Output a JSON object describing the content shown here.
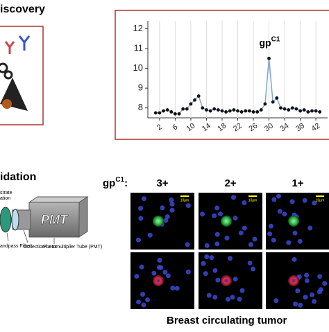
{
  "header": {
    "discovery": "iscovery",
    "validation": "idation"
  },
  "chart_data": {
    "type": "line",
    "annotation": {
      "base": "gp",
      "sup": "C1"
    },
    "x": [
      1,
      2,
      3,
      4,
      5,
      6,
      7,
      8,
      9,
      10,
      11,
      12,
      13,
      14,
      15,
      16,
      17,
      18,
      19,
      20,
      21,
      22,
      23,
      24,
      25,
      26,
      27,
      28,
      29,
      30,
      31,
      32,
      33,
      34,
      35,
      36,
      37,
      38,
      39,
      40,
      41,
      42,
      43
    ],
    "series": [
      {
        "color": "#7fa3d9",
        "marker_color": "#111111",
        "values": [
          7.75,
          7.75,
          7.85,
          7.9,
          7.8,
          7.7,
          7.7,
          7.95,
          7.95,
          8.2,
          8.4,
          8.6,
          8.0,
          7.9,
          7.85,
          7.95,
          7.9,
          7.85,
          7.8,
          7.85,
          7.9,
          7.85,
          7.8,
          7.85,
          7.85,
          7.8,
          7.8,
          7.9,
          8.2,
          10.5,
          8.3,
          8.5,
          8.0,
          7.95,
          7.9,
          8.0,
          7.95,
          7.85,
          7.9,
          7.8,
          7.85,
          7.85,
          7.8
        ]
      }
    ],
    "xlim": [
      -1,
      45
    ],
    "ylim": [
      7.5,
      12.4
    ],
    "xticks": [
      2,
      6,
      10,
      14,
      18,
      22,
      26,
      30,
      34,
      38,
      42
    ],
    "yticks": [
      8,
      9,
      10,
      11,
      12
    ],
    "grid": "x"
  },
  "panel": {
    "prefix": {
      "base": "gp",
      "sup": "C1",
      "colon": ":"
    },
    "columns": [
      "3+",
      "2+",
      "1+"
    ],
    "scale": "10μm",
    "caption": "Breast circulating tumor"
  },
  "diagram": {
    "pmt": "PMT",
    "substrate": "strate",
    "illumination": "ation",
    "filter": "andpass Filter",
    "lens": "Collection Lens",
    "tube": "Photomultiplier Tube (PMT)"
  }
}
